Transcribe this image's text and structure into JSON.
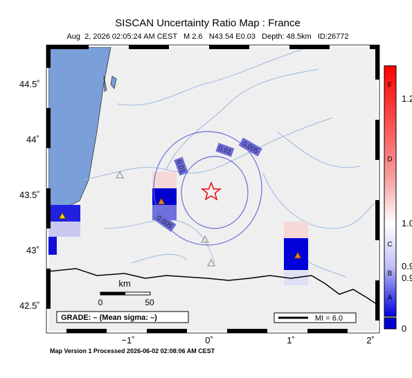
{
  "header": {
    "title": "SISCAN Uncertainty Ratio Map : France",
    "subtitle": "Aug  2, 2026 02:05:24 AM CEST   M 2.6   N43.54 E0.03   Depth: 48.5km   ID:26772"
  },
  "map": {
    "lat_labels": [
      "44.5˚",
      "44˚",
      "43.5˚",
      "43˚",
      "42.5˚"
    ],
    "lon_labels": [
      "−1˚",
      "0˚",
      "1˚",
      "2˚"
    ],
    "contour_labels": [
      "0.01",
      "0.005",
      "0.01",
      "0.005"
    ],
    "scale": {
      "unit": "km",
      "start": "0",
      "end": "50"
    },
    "grade": "GRADE: – (Mean sigma: –)",
    "mi": "MI = 6.0"
  },
  "colorbar": {
    "grades": [
      "F",
      "D",
      "C",
      "B",
      "A"
    ],
    "ticks": [
      "1.2",
      "1.0",
      "0.9",
      "0.9",
      "0"
    ]
  },
  "footer": "Map Version 1 Processed 2026-06-02 02:08:06 AM CEST"
}
